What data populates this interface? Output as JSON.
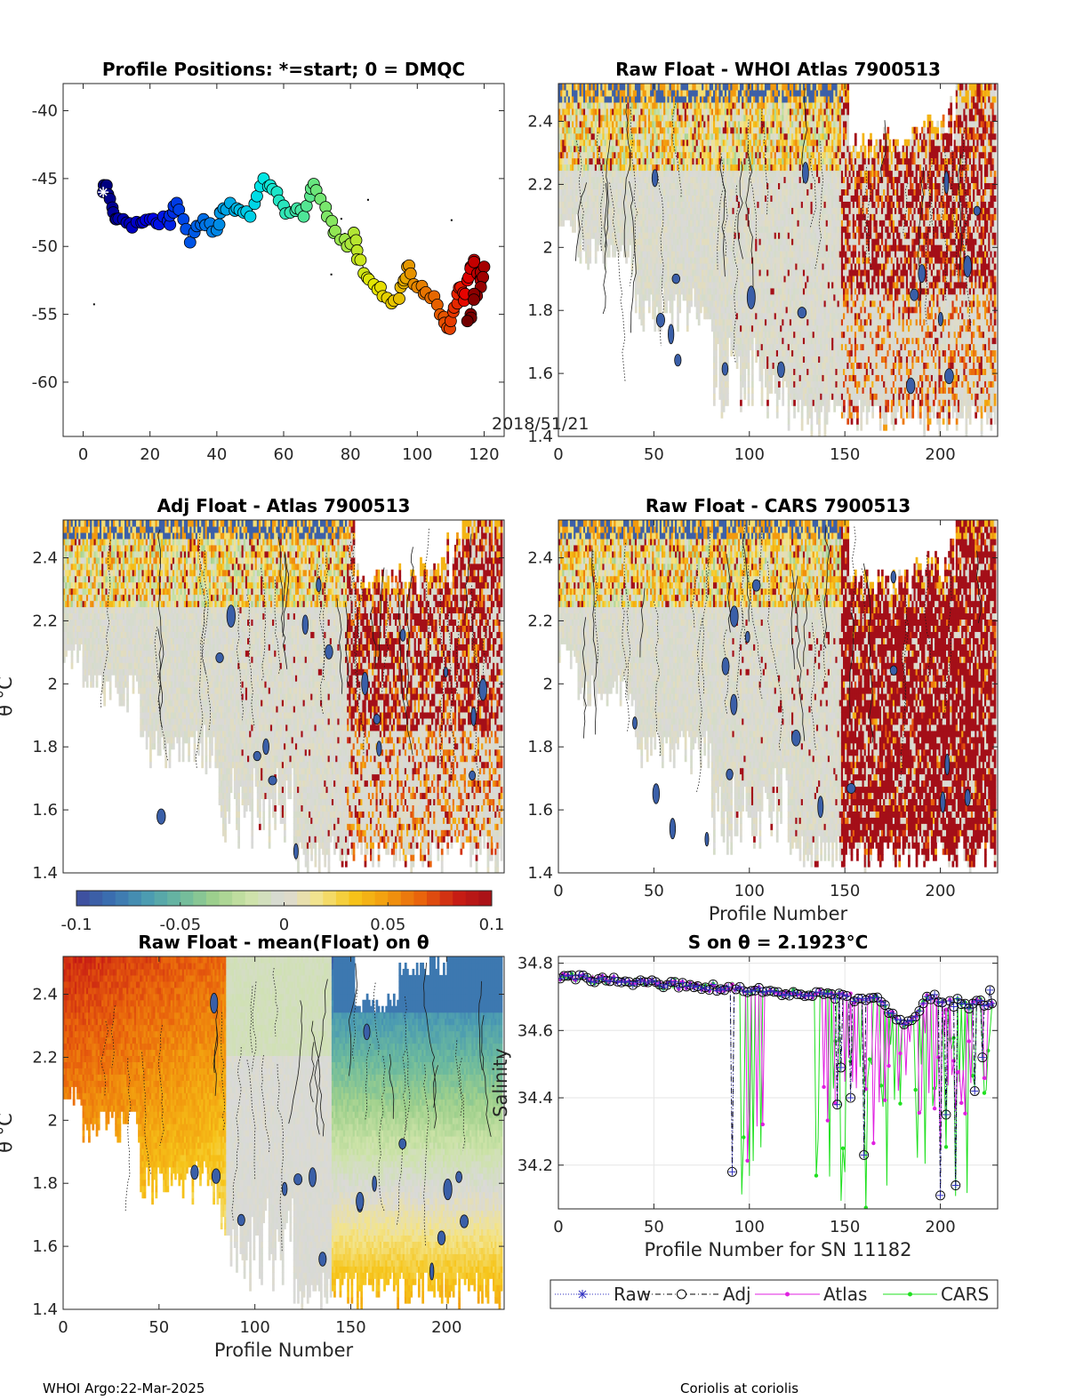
{
  "chart_data": [
    {
      "id": "positions",
      "type": "scatter",
      "title": "Profile Positions: *=start; 0 = DMQC",
      "xlim": [
        -6,
        126
      ],
      "ylim": [
        -64,
        -38
      ],
      "xticks": [
        0,
        20,
        40,
        60,
        80,
        100,
        120
      ],
      "yticks": [
        -40,
        -45,
        -50,
        -55,
        -60
      ],
      "date_annotation": "2018/51/21",
      "start_point": {
        "x": 6,
        "y": -46
      },
      "track": [
        {
          "x": 6,
          "y": -46
        },
        {
          "x": 7,
          "y": -45.5
        },
        {
          "x": 8,
          "y": -46.5
        },
        {
          "x": 9,
          "y": -47.5
        },
        {
          "x": 10,
          "y": -48
        },
        {
          "x": 12,
          "y": -48
        },
        {
          "x": 14,
          "y": -48.3
        },
        {
          "x": 16,
          "y": -48.2
        },
        {
          "x": 18,
          "y": -48.2
        },
        {
          "x": 20,
          "y": -48
        },
        {
          "x": 22,
          "y": -48.3
        },
        {
          "x": 24,
          "y": -47.8
        },
        {
          "x": 26,
          "y": -48.4
        },
        {
          "x": 27,
          "y": -47.5
        },
        {
          "x": 28,
          "y": -46.8
        },
        {
          "x": 30,
          "y": -48
        },
        {
          "x": 32,
          "y": -49.7
        },
        {
          "x": 34,
          "y": -48.5
        },
        {
          "x": 36,
          "y": -48
        },
        {
          "x": 38,
          "y": -48.3
        },
        {
          "x": 40,
          "y": -48.8
        },
        {
          "x": 41,
          "y": -47.5
        },
        {
          "x": 42,
          "y": -47.2
        },
        {
          "x": 44,
          "y": -46.8
        },
        {
          "x": 46,
          "y": -47.2
        },
        {
          "x": 48,
          "y": -47.5
        },
        {
          "x": 50,
          "y": -47.8
        },
        {
          "x": 52,
          "y": -46.3
        },
        {
          "x": 54,
          "y": -45
        },
        {
          "x": 56,
          "y": -45.5
        },
        {
          "x": 58,
          "y": -46
        },
        {
          "x": 60,
          "y": -47
        },
        {
          "x": 62,
          "y": -47.5
        },
        {
          "x": 64,
          "y": -47.2
        },
        {
          "x": 66,
          "y": -47.8
        },
        {
          "x": 68,
          "y": -46.3
        },
        {
          "x": 69,
          "y": -45.4
        },
        {
          "x": 71,
          "y": -46.5
        },
        {
          "x": 73,
          "y": -47.8
        },
        {
          "x": 75,
          "y": -49
        },
        {
          "x": 77,
          "y": -49.5
        },
        {
          "x": 79,
          "y": -50
        },
        {
          "x": 81,
          "y": -49
        },
        {
          "x": 82,
          "y": -50.3
        },
        {
          "x": 83,
          "y": -51
        },
        {
          "x": 85,
          "y": -52.3
        },
        {
          "x": 87,
          "y": -52.8
        },
        {
          "x": 89,
          "y": -53
        },
        {
          "x": 91,
          "y": -53.8
        },
        {
          "x": 93,
          "y": -54
        },
        {
          "x": 95,
          "y": -53
        },
        {
          "x": 96,
          "y": -52.5
        },
        {
          "x": 97,
          "y": -51.5
        },
        {
          "x": 98,
          "y": -52
        },
        {
          "x": 100,
          "y": -53
        },
        {
          "x": 102,
          "y": -53.5
        },
        {
          "x": 104,
          "y": -53.8
        },
        {
          "x": 106,
          "y": -54.3
        },
        {
          "x": 108,
          "y": -55.2
        },
        {
          "x": 109,
          "y": -56
        },
        {
          "x": 110,
          "y": -55.5
        },
        {
          "x": 111,
          "y": -54.5
        },
        {
          "x": 112,
          "y": -53.5
        },
        {
          "x": 113,
          "y": -53
        },
        {
          "x": 114,
          "y": -54
        },
        {
          "x": 115,
          "y": -52.5
        },
        {
          "x": 116,
          "y": -51.5
        },
        {
          "x": 117,
          "y": -51
        },
        {
          "x": 118,
          "y": -52
        },
        {
          "x": 119,
          "y": -52.5
        },
        {
          "x": 120,
          "y": -51.5
        },
        {
          "x": 119,
          "y": -53
        },
        {
          "x": 117,
          "y": -53.5
        },
        {
          "x": 116,
          "y": -55
        },
        {
          "x": 115,
          "y": -55.5
        }
      ]
    },
    {
      "id": "raw_whoi",
      "type": "heatmap",
      "title": "Raw Float - WHOI Atlas  7900513",
      "xlim": [
        0,
        230
      ],
      "ylim": [
        1.4,
        2.52
      ],
      "xticks": [
        0,
        50,
        100,
        150,
        200
      ],
      "yticks": [
        1.4,
        1.6,
        1.8,
        2,
        2.2,
        2.4
      ],
      "ylabel": "",
      "xlabel": ""
    },
    {
      "id": "adj_atlas",
      "type": "heatmap",
      "title": "Adj Float - Atlas  7900513",
      "xlim": [
        0,
        230
      ],
      "ylim": [
        1.4,
        2.52
      ],
      "xticks": [],
      "yticks": [
        1.4,
        1.6,
        1.8,
        2,
        2.2,
        2.4
      ],
      "ylabel": "θ °C",
      "xlabel": ""
    },
    {
      "id": "raw_cars",
      "type": "heatmap",
      "title": "Raw Float - CARS  7900513",
      "xlim": [
        0,
        230
      ],
      "ylim": [
        1.4,
        2.52
      ],
      "xticks": [
        0,
        50,
        100,
        150,
        200
      ],
      "yticks": [
        1.4,
        1.6,
        1.8,
        2,
        2.2,
        2.4
      ],
      "ylabel": "",
      "xlabel": "Profile Number"
    },
    {
      "id": "raw_mean",
      "type": "heatmap",
      "title": "Raw Float - mean(Float) on θ",
      "xlim": [
        0,
        230
      ],
      "ylim": [
        1.4,
        2.52
      ],
      "xticks": [
        0,
        50,
        100,
        150,
        200
      ],
      "yticks": [
        1.4,
        1.6,
        1.8,
        2,
        2.2,
        2.4
      ],
      "ylabel": "θ °C",
      "xlabel": "Profile Number"
    },
    {
      "id": "colorbar",
      "type": "colorbar",
      "range": [
        -0.1,
        0.1
      ],
      "ticks": [
        "-0.1",
        "-0.05",
        "0",
        "0.05",
        "0.1"
      ],
      "colormap": [
        "#3f4a9c",
        "#3a6fb0",
        "#4a9ab2",
        "#6bb99e",
        "#9fd08c",
        "#cde3a8",
        "#d9d9d9",
        "#f3e48a",
        "#f6c51a",
        "#f29a0e",
        "#e8600c",
        "#c81d14",
        "#a40f18"
      ]
    },
    {
      "id": "s_on_theta",
      "type": "line",
      "title": "S on θ = 2.1923°C",
      "xlim": [
        0,
        230
      ],
      "ylim": [
        34.07,
        34.82
      ],
      "xticks": [
        0,
        50,
        100,
        150,
        200
      ],
      "yticks": [
        34.2,
        34.4,
        34.6,
        34.8
      ],
      "xlabel": "Profile Number for SN 11182",
      "ylabel": "Salinity",
      "series": [
        {
          "name": "Raw",
          "color": "#3030c0",
          "marker": "*"
        },
        {
          "name": "Adj",
          "color": "#000000",
          "marker": "o"
        },
        {
          "name": "Atlas",
          "color": "#e020e0",
          "marker": "."
        },
        {
          "name": "CARS",
          "color": "#20e020",
          "marker": "."
        }
      ],
      "adj_dips": [
        {
          "x": 91,
          "y": 34.18
        },
        {
          "x": 146,
          "y": 34.38
        },
        {
          "x": 148,
          "y": 34.49
        },
        {
          "x": 153,
          "y": 34.4
        },
        {
          "x": 160,
          "y": 34.23
        },
        {
          "x": 200,
          "y": 34.11
        },
        {
          "x": 203,
          "y": 34.35
        },
        {
          "x": 208,
          "y": 34.14
        },
        {
          "x": 218,
          "y": 34.42
        },
        {
          "x": 222,
          "y": 34.52
        },
        {
          "x": 226,
          "y": 34.72
        }
      ]
    }
  ],
  "footer": {
    "left": "WHOI Argo:22-Mar-2025",
    "right": "Coriolis at coriolis"
  }
}
